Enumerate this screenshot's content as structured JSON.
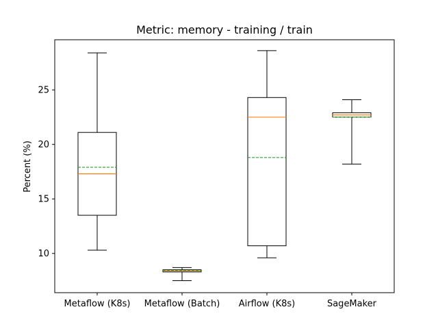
{
  "chart_data": {
    "type": "box",
    "title": "Metric: memory - training / train",
    "xlabel": "",
    "ylabel": "Percent (%)",
    "ylim": [
      6.4,
      29.6
    ],
    "yticks": [
      10,
      15,
      20,
      25
    ],
    "grid": false,
    "median_color": "#ff7f0e",
    "mean_color": "#2ca02c",
    "categories": [
      "Metaflow (K8s)",
      "Metaflow (Batch)",
      "Airflow (K8s)",
      "SageMaker"
    ],
    "boxes": [
      {
        "whisker_low": 10.3,
        "q1": 13.5,
        "median": 17.3,
        "mean": 17.9,
        "q3": 21.1,
        "whisker_high": 28.4
      },
      {
        "whisker_low": 7.5,
        "q1": 8.3,
        "median": 8.4,
        "mean": 8.45,
        "q3": 8.5,
        "whisker_high": 8.7
      },
      {
        "whisker_low": 9.6,
        "q1": 10.7,
        "median": 22.5,
        "mean": 18.8,
        "q3": 24.3,
        "whisker_high": 28.6
      },
      {
        "whisker_low": 18.2,
        "q1": 22.5,
        "median": 22.7,
        "mean": 22.5,
        "q3": 22.9,
        "whisker_high": 24.1
      }
    ]
  }
}
